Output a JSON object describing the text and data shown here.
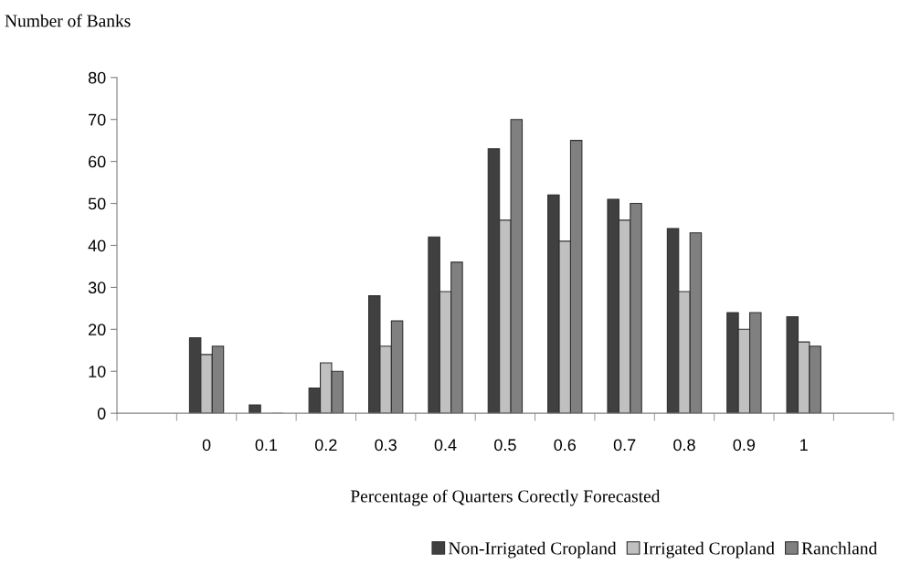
{
  "chart_data": {
    "type": "bar",
    "xlabel": "Percentage of Quarters Corectly Forecasted",
    "ylabel": "Number of Banks",
    "categories": [
      null,
      "0",
      "0.1",
      "0.2",
      "0.3",
      "0.4",
      "0.5",
      "0.6",
      "0.7",
      "0.8",
      "0.9",
      "1",
      null
    ],
    "series": [
      {
        "name": "Non-Irrigated Cropland",
        "color": "#404040",
        "values": [
          null,
          18,
          2,
          6,
          28,
          42,
          63,
          52,
          51,
          44,
          24,
          23,
          null
        ]
      },
      {
        "name": "Irrigated Cropland",
        "color": "#c0c0c0",
        "values": [
          null,
          14,
          0,
          12,
          16,
          29,
          46,
          41,
          46,
          29,
          20,
          17,
          null
        ]
      },
      {
        "name": "Ranchland",
        "color": "#808080",
        "values": [
          null,
          16,
          0,
          10,
          22,
          36,
          70,
          65,
          50,
          43,
          24,
          16,
          null
        ]
      }
    ],
    "ylim": [
      0,
      80
    ],
    "yticks": [
      0,
      10,
      20,
      30,
      40,
      50,
      60,
      70,
      80
    ],
    "grid": false,
    "legend": "bottom right"
  }
}
